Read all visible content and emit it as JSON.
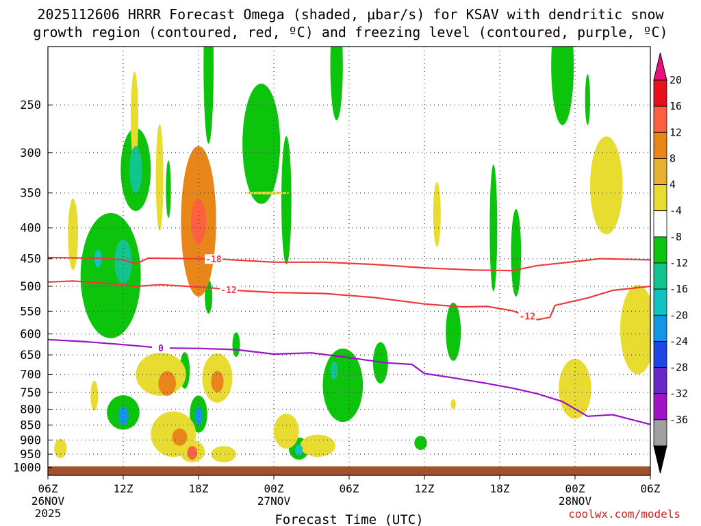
{
  "title": "2025112606 HRRR Forecast Omega (shaded, μbar/s) for KSAV with dendritic snow\ngrowth region (contoured, red, ºC) and freezing level (contoured, purple, ºC)",
  "credit": "coolwx.com/models",
  "chart_data": {
    "type": "heatmap",
    "title": "2025112606 HRRR Forecast Omega (shaded, μbar/s) for KSAV with dendritic snow growth region (contoured, red, ºC) and freezing level (contoured, purple, ºC)",
    "xlabel": "Forecast Time (UTC)",
    "ylabel": "",
    "x_range_hours": [
      0,
      48
    ],
    "x_ticks": [
      {
        "h": 0,
        "label": "06Z",
        "sub": "26NOV",
        "sub2": "2025"
      },
      {
        "h": 6,
        "label": "12Z",
        "sub": "",
        "sub2": ""
      },
      {
        "h": 12,
        "label": "18Z",
        "sub": "",
        "sub2": ""
      },
      {
        "h": 18,
        "label": "00Z",
        "sub": "27NOV",
        "sub2": ""
      },
      {
        "h": 24,
        "label": "06Z",
        "sub": "",
        "sub2": ""
      },
      {
        "h": 30,
        "label": "12Z",
        "sub": "",
        "sub2": ""
      },
      {
        "h": 36,
        "label": "18Z",
        "sub": "",
        "sub2": ""
      },
      {
        "h": 42,
        "label": "00Z",
        "sub": "28NOV",
        "sub2": ""
      },
      {
        "h": 48,
        "label": "06Z",
        "sub": "",
        "sub2": ""
      }
    ],
    "y_ticks": [
      250,
      300,
      350,
      400,
      450,
      500,
      550,
      600,
      650,
      700,
      750,
      800,
      850,
      900,
      950,
      1000
    ],
    "y_range_hPa": [
      200,
      1030
    ],
    "colorbar": {
      "labels": [
        "20",
        "16",
        "12",
        "8",
        "4",
        "-4",
        "-8",
        "-12",
        "-16",
        "-20",
        "-24",
        "-28",
        "-32",
        "-36"
      ],
      "colors": [
        "#e8101f",
        "#ff6040",
        "#e8861a",
        "#e8b030",
        "#e8dc30",
        "#ffffff",
        "#0cc40c",
        "#12c48e",
        "#10c4c4",
        "#1496e6",
        "#1e46e6",
        "#6a28c8",
        "#a014c8",
        "#a0a0a0"
      ],
      "top_color": "#e8107a",
      "bottom_color": "#000000"
    },
    "contours": [
      {
        "name": "-18",
        "color": "#ee3a3a",
        "points": [
          [
            0,
            448
          ],
          [
            4,
            449
          ],
          [
            6,
            452
          ],
          [
            7,
            459
          ],
          [
            8,
            449
          ],
          [
            12,
            450
          ],
          [
            14,
            451
          ],
          [
            18,
            456
          ],
          [
            22,
            456
          ],
          [
            26,
            460
          ],
          [
            30,
            466
          ],
          [
            34,
            470
          ],
          [
            37,
            471
          ],
          [
            39,
            462
          ],
          [
            42,
            455
          ],
          [
            44,
            450
          ],
          [
            48,
            452
          ]
        ]
      },
      {
        "name": "-12",
        "color": "#ee3a3a",
        "points": [
          [
            0,
            492
          ],
          [
            2,
            490
          ],
          [
            5,
            495
          ],
          [
            7,
            500
          ],
          [
            9,
            497
          ],
          [
            13,
            503
          ],
          [
            15,
            508
          ],
          [
            18,
            512
          ],
          [
            22,
            514
          ],
          [
            26,
            522
          ],
          [
            30,
            535
          ],
          [
            33,
            541
          ],
          [
            35,
            540
          ],
          [
            37,
            549
          ],
          [
            39,
            568
          ],
          [
            40,
            563
          ],
          [
            40.4,
            538
          ],
          [
            43,
            523
          ],
          [
            45,
            508
          ],
          [
            48,
            500
          ]
        ]
      },
      {
        "name": "0",
        "color": "#9a10c8",
        "points": [
          [
            0,
            613
          ],
          [
            3,
            618
          ],
          [
            6,
            625
          ],
          [
            9,
            633
          ],
          [
            12,
            634
          ],
          [
            15,
            637
          ],
          [
            18,
            648
          ],
          [
            21,
            645
          ],
          [
            24,
            657
          ],
          [
            27,
            670
          ],
          [
            29,
            674
          ],
          [
            30,
            698
          ],
          [
            32,
            708
          ],
          [
            35,
            725
          ],
          [
            37,
            738
          ],
          [
            39,
            754
          ],
          [
            41,
            777
          ],
          [
            43,
            822
          ],
          [
            45,
            817
          ],
          [
            48,
            848
          ]
        ]
      }
    ],
    "omega_positive_regions": [
      {
        "value": 6,
        "center": [
          2,
          410
        ],
        "radius": [
          0.4,
          60
        ]
      },
      {
        "value": 6,
        "center": [
          6.9,
          262
        ],
        "radius": [
          0.3,
          50
        ]
      },
      {
        "value": 6,
        "center": [
          8.9,
          330
        ],
        "radius": [
          0.3,
          75
        ]
      },
      {
        "value": 10,
        "center": [
          12,
          390
        ],
        "radius": [
          1.4,
          130
        ]
      },
      {
        "value": 14,
        "center": [
          12,
          390
        ],
        "radius": [
          0.6,
          35
        ]
      },
      {
        "value": 6,
        "center": [
          17.5,
          350
        ],
        "radius": [
          1.8,
          1
        ]
      },
      {
        "value": 6,
        "center": [
          31,
          380
        ],
        "radius": [
          0.3,
          50
        ]
      },
      {
        "value": 6,
        "center": [
          44.5,
          340
        ],
        "radius": [
          1.3,
          70
        ]
      },
      {
        "value": 6,
        "center": [
          47,
          590
        ],
        "radius": [
          1.4,
          110
        ]
      },
      {
        "value": 6,
        "center": [
          42,
          740
        ],
        "radius": [
          1.3,
          90
        ]
      },
      {
        "value": 6,
        "center": [
          9,
          700
        ],
        "radius": [
          2.0,
          60
        ]
      },
      {
        "value": 10,
        "center": [
          9.5,
          725
        ],
        "radius": [
          0.7,
          35
        ]
      },
      {
        "value": 6,
        "center": [
          13.5,
          710
        ],
        "radius": [
          1.2,
          70
        ]
      },
      {
        "value": 10,
        "center": [
          13.5,
          720
        ],
        "radius": [
          0.5,
          30
        ]
      },
      {
        "value": 6,
        "center": [
          10,
          880
        ],
        "radius": [
          1.8,
          80
        ]
      },
      {
        "value": 10,
        "center": [
          10.5,
          890
        ],
        "radius": [
          0.6,
          30
        ]
      },
      {
        "value": 6,
        "center": [
          11.5,
          940
        ],
        "radius": [
          1.0,
          40
        ]
      },
      {
        "value": 12,
        "center": [
          11.5,
          945
        ],
        "radius": [
          0.4,
          25
        ]
      },
      {
        "value": 6,
        "center": [
          1,
          930
        ],
        "radius": [
          0.5,
          35
        ]
      },
      {
        "value": 6,
        "center": [
          14,
          950
        ],
        "radius": [
          1.0,
          30
        ]
      },
      {
        "value": 6,
        "center": [
          19,
          870
        ],
        "radius": [
          1.0,
          60
        ]
      },
      {
        "value": 6,
        "center": [
          21.5,
          920
        ],
        "radius": [
          1.4,
          40
        ]
      },
      {
        "value": 6,
        "center": [
          3.7,
          760
        ],
        "radius": [
          0.3,
          45
        ]
      },
      {
        "value": 6,
        "center": [
          32.3,
          785
        ],
        "radius": [
          0.2,
          15
        ]
      }
    ],
    "omega_negative_regions": [
      {
        "value": -6,
        "center": [
          12.8,
          215
        ],
        "radius": [
          0.4,
          75
        ]
      },
      {
        "value": -6,
        "center": [
          23,
          215
        ],
        "radius": [
          0.5,
          50
        ]
      },
      {
        "value": -6,
        "center": [
          17,
          290
        ],
        "radius": [
          1.5,
          75
        ]
      },
      {
        "value": -6,
        "center": [
          19,
          360
        ],
        "radius": [
          0.4,
          100
        ]
      },
      {
        "value": -6,
        "center": [
          7,
          320
        ],
        "radius": [
          1.2,
          55
        ]
      },
      {
        "value": -10,
        "center": [
          7,
          320
        ],
        "radius": [
          0.5,
          30
        ]
      },
      {
        "value": -6,
        "center": [
          9.6,
          345
        ],
        "radius": [
          0.2,
          40
        ]
      },
      {
        "value": -6,
        "center": [
          5,
          480
        ],
        "radius": [
          2.4,
          130
        ]
      },
      {
        "value": -10,
        "center": [
          6,
          455
        ],
        "radius": [
          0.7,
          40
        ]
      },
      {
        "value": -14,
        "center": [
          4,
          450
        ],
        "radius": [
          0.3,
          15
        ]
      },
      {
        "value": -6,
        "center": [
          12.8,
          520
        ],
        "radius": [
          0.3,
          35
        ]
      },
      {
        "value": -6,
        "center": [
          35.5,
          400
        ],
        "radius": [
          0.3,
          110
        ]
      },
      {
        "value": -6,
        "center": [
          37.3,
          440
        ],
        "radius": [
          0.4,
          80
        ]
      },
      {
        "value": -6,
        "center": [
          32.3,
          595
        ],
        "radius": [
          0.6,
          70
        ]
      },
      {
        "value": -6,
        "center": [
          41,
          215
        ],
        "radius": [
          0.9,
          55
        ]
      },
      {
        "value": -6,
        "center": [
          43,
          245
        ],
        "radius": [
          0.2,
          25
        ]
      },
      {
        "value": -6,
        "center": [
          23.5,
          730
        ],
        "radius": [
          1.6,
          110
        ]
      },
      {
        "value": -10,
        "center": [
          22.8,
          690
        ],
        "radius": [
          0.3,
          25
        ]
      },
      {
        "value": -6,
        "center": [
          26.5,
          670
        ],
        "radius": [
          0.6,
          55
        ]
      },
      {
        "value": -6,
        "center": [
          10.9,
          690
        ],
        "radius": [
          0.4,
          50
        ]
      },
      {
        "value": -6,
        "center": [
          6,
          810
        ],
        "radius": [
          1.3,
          55
        ]
      },
      {
        "value": -16,
        "center": [
          6,
          820
        ],
        "radius": [
          0.4,
          30
        ]
      },
      {
        "value": -6,
        "center": [
          12,
          815
        ],
        "radius": [
          0.7,
          60
        ]
      },
      {
        "value": -18,
        "center": [
          12,
          820
        ],
        "radius": [
          0.3,
          30
        ]
      },
      {
        "value": -6,
        "center": [
          15,
          625
        ],
        "radius": [
          0.3,
          30
        ]
      },
      {
        "value": -6,
        "center": [
          20,
          930
        ],
        "radius": [
          0.8,
          40
        ]
      },
      {
        "value": -12,
        "center": [
          20,
          935
        ],
        "radius": [
          0.3,
          20
        ]
      },
      {
        "value": -6,
        "center": [
          29.7,
          910
        ],
        "radius": [
          0.5,
          25
        ]
      }
    ],
    "surface_color": "#a0522d"
  }
}
